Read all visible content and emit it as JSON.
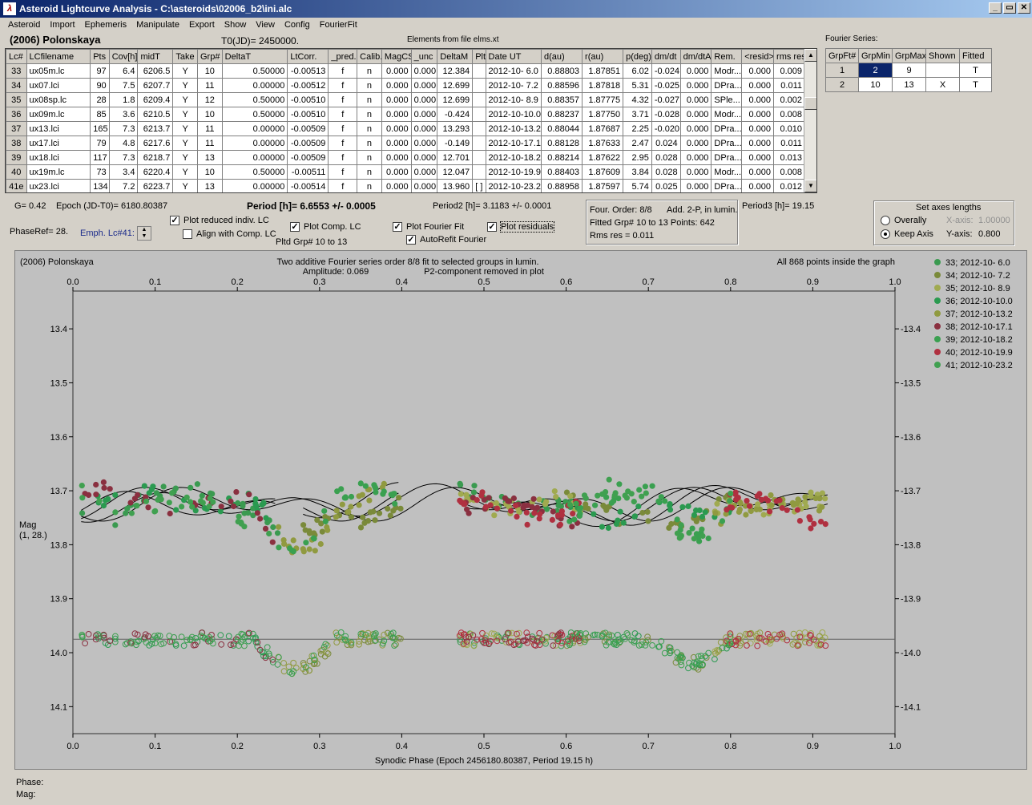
{
  "window": {
    "title": "Asteroid Lightcurve Analysis - C:\\asteroids\\02006_b2\\ini.alc",
    "minimize": "_",
    "restore": "▭",
    "close": "✕"
  },
  "menu": [
    "Asteroid",
    "Import",
    "Ephemeris",
    "Manipulate",
    "Export",
    "Show",
    "View",
    "Config",
    "FourierFit"
  ],
  "header": {
    "asteroid": "(2006) Polonskaya",
    "t0": "T0(JD)= 2450000.",
    "elements": "Elements from file elms.xt"
  },
  "lc_table": {
    "columns": [
      "Lc#",
      "LCfilename",
      "Pts",
      "Cov[h]",
      "midT",
      "Take",
      "Grp#",
      "DeltaT",
      "LtCorr.",
      "_pred.",
      "Calib.",
      "MagCS",
      "_unc",
      "DeltaM",
      "Plt",
      "Date UT",
      "d(au)",
      "r(au)",
      "p(deg)",
      "dm/dt",
      "dm/dtA",
      "Rem.",
      "<resid>",
      "rms res"
    ],
    "rows": [
      [
        "33",
        "ux05m.lc",
        "97",
        "6.4",
        "6206.5",
        "Y",
        "10",
        "0.50000",
        "-0.00513",
        "f",
        "n",
        "0.000",
        "0.000",
        "12.384",
        "",
        "2012-10- 6.0",
        "0.88803",
        "1.87851",
        "6.02",
        "-0.024",
        "0.000",
        "Modr...",
        "0.000",
        "0.009"
      ],
      [
        "34",
        "ux07.lci",
        "90",
        "7.5",
        "6207.7",
        "Y",
        "11",
        "0.00000",
        "-0.00512",
        "f",
        "n",
        "0.000",
        "0.000",
        "12.699",
        "",
        "2012-10- 7.2",
        "0.88596",
        "1.87818",
        "5.31",
        "-0.025",
        "0.000",
        "DPra...",
        "0.000",
        "0.011"
      ],
      [
        "35",
        "ux08sp.lc",
        "28",
        "1.8",
        "6209.4",
        "Y",
        "12",
        "0.50000",
        "-0.00510",
        "f",
        "n",
        "0.000",
        "0.000",
        "12.699",
        "",
        "2012-10- 8.9",
        "0.88357",
        "1.87775",
        "4.32",
        "-0.027",
        "0.000",
        "SPle...",
        "0.000",
        "0.002"
      ],
      [
        "36",
        "ux09m.lc",
        "85",
        "3.6",
        "6210.5",
        "Y",
        "10",
        "0.50000",
        "-0.00510",
        "f",
        "n",
        "0.000",
        "0.000",
        "-0.424",
        "",
        "2012-10-10.0",
        "0.88237",
        "1.87750",
        "3.71",
        "-0.028",
        "0.000",
        "Modr...",
        "0.000",
        "0.008"
      ],
      [
        "37",
        "ux13.lci",
        "165",
        "7.3",
        "6213.7",
        "Y",
        "11",
        "0.00000",
        "-0.00509",
        "f",
        "n",
        "0.000",
        "0.000",
        "13.293",
        "",
        "2012-10-13.2",
        "0.88044",
        "1.87687",
        "2.25",
        "-0.020",
        "0.000",
        "DPra...",
        "0.000",
        "0.010"
      ],
      [
        "38",
        "ux17.lci",
        "79",
        "4.8",
        "6217.6",
        "Y",
        "11",
        "0.00000",
        "-0.00509",
        "f",
        "n",
        "0.000",
        "0.000",
        "-0.149",
        "",
        "2012-10-17.1",
        "0.88128",
        "1.87633",
        "2.47",
        "0.024",
        "0.000",
        "DPra...",
        "0.000",
        "0.011"
      ],
      [
        "39",
        "ux18.lci",
        "117",
        "7.3",
        "6218.7",
        "Y",
        "13",
        "0.00000",
        "-0.00509",
        "f",
        "n",
        "0.000",
        "0.000",
        "12.701",
        "",
        "2012-10-18.2",
        "0.88214",
        "1.87622",
        "2.95",
        "0.028",
        "0.000",
        "DPra...",
        "0.000",
        "0.013"
      ],
      [
        "40",
        "ux19m.lc",
        "73",
        "3.4",
        "6220.4",
        "Y",
        "10",
        "0.50000",
        "-0.00511",
        "f",
        "n",
        "0.000",
        "0.000",
        "12.047",
        "",
        "2012-10-19.9",
        "0.88403",
        "1.87609",
        "3.84",
        "0.028",
        "0.000",
        "Modr...",
        "0.000",
        "0.008"
      ],
      [
        "41e",
        "ux23.lci",
        "134",
        "7.2",
        "6223.7",
        "Y",
        "13",
        "0.00000",
        "-0.00514",
        "f",
        "n",
        "0.000",
        "0.000",
        "13.960",
        "[ ]",
        "2012-10-23.2",
        "0.88958",
        "1.87597",
        "5.74",
        "0.025",
        "0.000",
        "DPra...",
        "0.000",
        "0.012"
      ]
    ]
  },
  "fourier": {
    "label": "Fourier Series:",
    "columns": [
      "GrpFt#",
      "GrpMin",
      "GrpMax",
      "Shown",
      "Fitted"
    ],
    "rows": [
      [
        "1",
        "2",
        "9",
        "",
        "T"
      ],
      [
        "2",
        "10",
        "13",
        "X",
        "T"
      ]
    ]
  },
  "controls": {
    "g": "G= 0.42",
    "epoch": "Epoch (JD-T0)= 6180.80387",
    "period": "Period [h]= 6.6553 +/- 0.0005",
    "period2": "Period2 [h]= 3.1183 +/- 0.0001",
    "period3": "Period3 [h]= 19.15",
    "phaseref": "PhaseRef= 28.",
    "emph": "Emph. Lc#41:",
    "plot_reduced": "Plot reduced indiv. LC",
    "align_comp": "Align with Comp. LC",
    "plot_comp": "Plot Comp. LC",
    "pltd_grp": "Pltd Grp#  10 to   13",
    "plot_fourier": "Plot Fourier Fit",
    "autorefit": "AutoRefit Fourier",
    "plot_residuals": "Plot residuals",
    "info_order": "Four. Order:  8/8",
    "info_add": "Add. 2-P, in lumin.",
    "info_fitted": "Fitted Grp# 10 to 13 Points: 642",
    "info_rms": "Rms res     = 0.011",
    "axes_title": "Set axes lengths",
    "overally": "Overally",
    "keep_axis": "Keep Axis",
    "xaxis_label": "X-axis:",
    "xaxis_val": "1.00000",
    "yaxis_label": "Y-axis:",
    "yaxis_val": "0.800"
  },
  "plot": {
    "name": "(2006) Polonskaya",
    "desc1": "Two additive Fourier series order 8/8 fit to selected groups in lumin.",
    "amp": "Amplitude: 0.069",
    "p2": "P2-component removed in plot",
    "inside": "All 868 points inside the graph",
    "ylabel1": "Mag",
    "ylabel2": "(1, 28.)",
    "xlabel": "Synodic Phase (Epoch 2456180.80387, Period 19.15 h)",
    "phase_label": "Phase:",
    "mag_label": "Mag:"
  },
  "chart_data": {
    "type": "scatter",
    "xlabel": "Synodic Phase (Epoch 2456180.80387, Period 19.15 h)",
    "ylabel": "Mag",
    "xlim": [
      0.0,
      1.0
    ],
    "ylim": [
      14.15,
      13.33
    ],
    "xticks": [
      "0.0",
      "0.1",
      "0.2",
      "0.3",
      "0.4",
      "0.5",
      "0.6",
      "0.7",
      "0.8",
      "0.9",
      "1.0"
    ],
    "yticks": [
      "13.4",
      "13.5",
      "13.6",
      "13.7",
      "13.8",
      "13.9",
      "14.0",
      "14.1"
    ],
    "residual_line": 13.975,
    "legend_position": "right",
    "series": [
      {
        "name": "33; 2012-10- 6.0",
        "color": "#3a9a50",
        "x": [
          0.47,
          0.5
        ],
        "y": [
          13.74,
          13.72
        ]
      },
      {
        "name": "34; 2012-10- 7.2",
        "color": "#7a8a3a",
        "x": [
          0.02,
          0.1
        ],
        "y": [
          13.72,
          13.73
        ]
      },
      {
        "name": "35; 2012-10- 8.9",
        "color": "#a0aa50",
        "x": [
          0.3,
          0.4
        ],
        "y": [
          13.74,
          13.71
        ]
      },
      {
        "name": "36; 2012-10-10.0",
        "color": "#2a9a50",
        "x": [
          0.6,
          0.7
        ],
        "y": [
          13.73,
          13.71
        ]
      },
      {
        "name": "37; 2012-10-13.2",
        "color": "#909a40",
        "x": [
          0.8,
          0.9
        ],
        "y": [
          13.72,
          13.71
        ]
      },
      {
        "name": "38; 2012-10-17.1",
        "color": "#8a3040",
        "x": [
          0.05,
          0.15
        ],
        "y": [
          13.72,
          13.74
        ]
      },
      {
        "name": "39; 2012-10-18.2",
        "color": "#3aa050",
        "x": [
          0.2,
          0.3
        ],
        "y": [
          13.74,
          13.79
        ]
      },
      {
        "name": "40; 2012-10-19.9",
        "color": "#b03040",
        "x": [
          0.5,
          0.6
        ],
        "y": [
          13.71,
          13.73
        ]
      },
      {
        "name": "41; 2012-10-23.2",
        "color": "#40a050",
        "x": [
          0.7,
          0.8
        ],
        "y": [
          13.72,
          13.77
        ]
      }
    ]
  }
}
